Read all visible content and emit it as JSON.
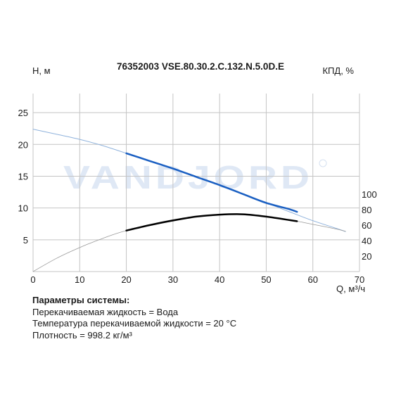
{
  "chart_data": {
    "type": "line",
    "title": "76352003 VSE.80.30.2.C.132.N.5.0D.E",
    "ylabel": "H, м",
    "y2label": "КПД, %",
    "xlabel": "Q, м³/ч",
    "xlim": [
      0,
      70
    ],
    "ylim": [
      0,
      28
    ],
    "y2lim": [
      0,
      230
    ],
    "xticks": [
      "0",
      "10",
      "20",
      "30",
      "40",
      "50",
      "60",
      "70"
    ],
    "yticks": [
      "5",
      "10",
      "15",
      "20",
      "25"
    ],
    "y2ticks": [
      "20",
      "40",
      "60",
      "80",
      "100"
    ],
    "watermark": "VANDJORD",
    "grid": true,
    "series": [
      {
        "axis": "left",
        "color": "#8fb2dc",
        "x": [
          0,
          5,
          10,
          15,
          20,
          25,
          30,
          35,
          40,
          45,
          50,
          55,
          60,
          65,
          67
        ],
        "values": [
          22.4,
          21.6,
          20.8,
          19.8,
          18.6,
          17.4,
          16.2,
          14.9,
          13.6,
          12.2,
          10.8,
          9.4,
          8.0,
          6.8,
          6.3
        ]
      },
      {
        "axis": "left",
        "color": "#1a5fc2",
        "x": [
          20,
          25,
          30,
          35,
          40,
          45,
          50,
          55,
          56.6
        ],
        "values": [
          18.6,
          17.4,
          16.2,
          14.9,
          13.6,
          12.2,
          10.8,
          9.8,
          9.4
        ]
      },
      {
        "axis": "right",
        "color": "#999999",
        "x": [
          0,
          5,
          10,
          15,
          20,
          30,
          40,
          45,
          50,
          56.6,
          60,
          65,
          67
        ],
        "values": [
          0,
          17,
          31,
          43,
          53,
          67,
          74,
          74,
          71,
          65,
          61,
          55,
          52
        ]
      },
      {
        "axis": "right",
        "color": "#000000",
        "x": [
          20,
          25,
          30,
          35,
          40,
          45,
          50,
          56.6
        ],
        "values": [
          53,
          60,
          66,
          71,
          73.5,
          74,
          71,
          65
        ]
      }
    ]
  },
  "params": {
    "heading": "Параметры системы:",
    "lines": [
      "Перекачиваемая жидкость = Вода",
      "Температура перекачиваемой жидкости = 20 °C",
      "Плотность = 998.2 кг/м³"
    ]
  }
}
